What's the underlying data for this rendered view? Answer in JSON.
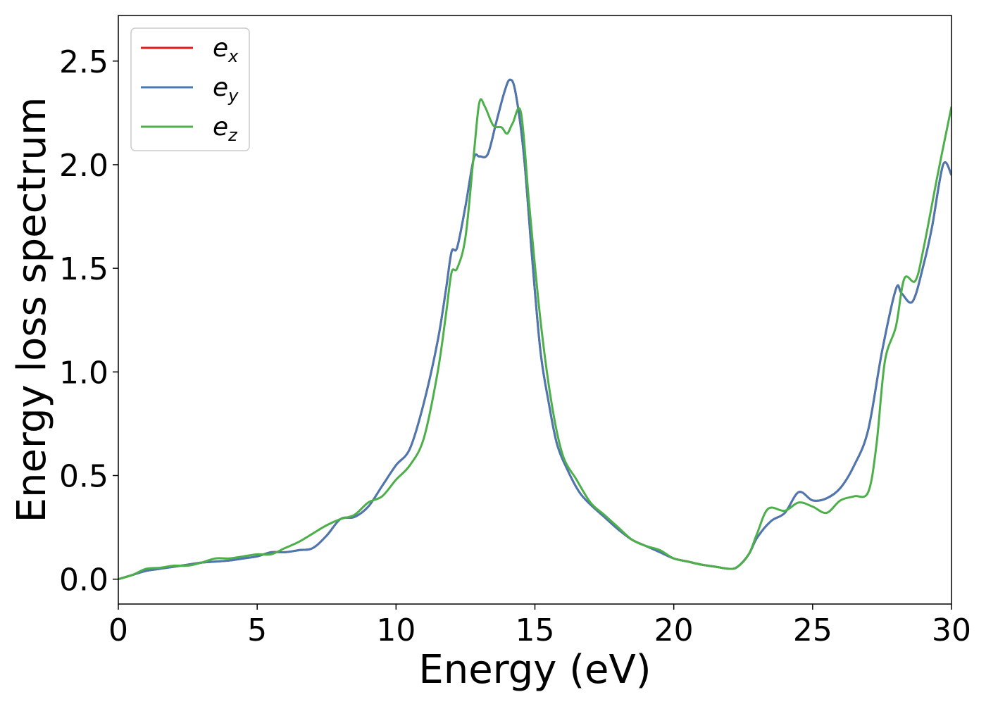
{
  "chart_data": {
    "type": "line",
    "xlabel": "Energy (eV)",
    "ylabel": "Energy loss spectrum",
    "xlim": [
      0,
      30
    ],
    "ylim": [
      -0.12,
      2.72
    ],
    "xticks": [
      "0",
      "5",
      "10",
      "15",
      "20",
      "25",
      "30"
    ],
    "yticks": [
      "0.0",
      "0.5",
      "1.0",
      "1.5",
      "2.0",
      "2.5"
    ],
    "grid": false,
    "legend_position": "top-left",
    "series": [
      {
        "name": "e_x",
        "label_base": "e",
        "label_sub": "x",
        "color": "#e41a1c",
        "x": [
          0,
          0.5,
          1,
          1.5,
          2,
          2.5,
          3,
          3.5,
          4,
          4.5,
          5,
          5.5,
          6,
          6.5,
          7,
          7.5,
          8,
          8.5,
          9,
          9.5,
          10,
          10.5,
          11,
          11.5,
          11.8,
          12,
          12.2,
          12.5,
          12.8,
          13,
          13.3,
          13.6,
          13.9,
          14.1,
          14.3,
          14.6,
          14.9,
          15.2,
          15.5,
          15.8,
          16.2,
          16.6,
          17,
          17.5,
          18,
          18.5,
          19,
          19.5,
          20,
          20.5,
          21,
          21.5,
          22,
          22.3,
          22.7,
          23,
          23.5,
          24,
          24.5,
          25,
          25.5,
          26,
          26.5,
          27,
          27.5,
          28,
          28.2,
          28.6,
          29,
          29.3,
          29.7,
          30
        ],
        "y": [
          0,
          0.02,
          0.04,
          0.05,
          0.06,
          0.07,
          0.08,
          0.085,
          0.09,
          0.1,
          0.11,
          0.13,
          0.13,
          0.14,
          0.15,
          0.21,
          0.29,
          0.3,
          0.35,
          0.45,
          0.55,
          0.63,
          0.85,
          1.15,
          1.4,
          1.58,
          1.6,
          1.8,
          2.03,
          2.04,
          2.05,
          2.2,
          2.35,
          2.41,
          2.35,
          2.05,
          1.55,
          1.1,
          0.85,
          0.65,
          0.52,
          0.42,
          0.36,
          0.3,
          0.24,
          0.19,
          0.16,
          0.13,
          0.1,
          0.085,
          0.07,
          0.06,
          0.05,
          0.06,
          0.12,
          0.2,
          0.28,
          0.32,
          0.42,
          0.38,
          0.39,
          0.44,
          0.55,
          0.72,
          1.1,
          1.4,
          1.38,
          1.34,
          1.52,
          1.7,
          2.0,
          1.95
        ]
      },
      {
        "name": "e_y",
        "label_base": "e",
        "label_sub": "y",
        "color": "#4a78b0",
        "x": [
          0,
          0.5,
          1,
          1.5,
          2,
          2.5,
          3,
          3.5,
          4,
          4.5,
          5,
          5.5,
          6,
          6.5,
          7,
          7.5,
          8,
          8.5,
          9,
          9.5,
          10,
          10.5,
          11,
          11.5,
          11.8,
          12,
          12.2,
          12.5,
          12.8,
          13,
          13.3,
          13.6,
          13.9,
          14.1,
          14.3,
          14.6,
          14.9,
          15.2,
          15.5,
          15.8,
          16.2,
          16.6,
          17,
          17.5,
          18,
          18.5,
          19,
          19.5,
          20,
          20.5,
          21,
          21.5,
          22,
          22.3,
          22.7,
          23,
          23.5,
          24,
          24.5,
          25,
          25.5,
          26,
          26.5,
          27,
          27.5,
          28,
          28.2,
          28.6,
          29,
          29.3,
          29.7,
          30
        ],
        "y": [
          0,
          0.02,
          0.04,
          0.05,
          0.06,
          0.07,
          0.08,
          0.085,
          0.09,
          0.1,
          0.11,
          0.13,
          0.13,
          0.14,
          0.15,
          0.21,
          0.29,
          0.3,
          0.35,
          0.45,
          0.55,
          0.63,
          0.85,
          1.15,
          1.4,
          1.58,
          1.6,
          1.8,
          2.03,
          2.04,
          2.05,
          2.2,
          2.35,
          2.41,
          2.35,
          2.05,
          1.55,
          1.1,
          0.85,
          0.65,
          0.52,
          0.42,
          0.36,
          0.3,
          0.24,
          0.19,
          0.16,
          0.13,
          0.1,
          0.085,
          0.07,
          0.06,
          0.05,
          0.06,
          0.12,
          0.2,
          0.28,
          0.32,
          0.42,
          0.38,
          0.39,
          0.44,
          0.55,
          0.72,
          1.1,
          1.4,
          1.38,
          1.34,
          1.52,
          1.7,
          2.0,
          1.95
        ]
      },
      {
        "name": "e_z",
        "label_base": "e",
        "label_sub": "z",
        "color": "#4daf4a",
        "x": [
          0,
          0.5,
          1,
          1.5,
          2,
          2.5,
          3,
          3.5,
          4,
          4.5,
          5,
          5.5,
          6,
          6.5,
          7,
          7.5,
          8,
          8.5,
          9,
          9.5,
          10,
          10.5,
          11,
          11.5,
          11.8,
          12,
          12.2,
          12.5,
          12.8,
          13,
          13.2,
          13.5,
          13.8,
          14,
          14.2,
          14.5,
          14.8,
          15.2,
          15.6,
          16,
          16.5,
          17,
          17.5,
          18,
          18.5,
          19,
          19.5,
          20,
          20.5,
          21,
          21.5,
          22,
          22.3,
          22.7,
          23,
          23.4,
          24,
          24.5,
          25,
          25.5,
          26,
          26.5,
          27,
          27.3,
          27.6,
          28,
          28.3,
          28.7,
          29,
          29.5,
          30
        ],
        "y": [
          0,
          0.02,
          0.05,
          0.055,
          0.065,
          0.065,
          0.08,
          0.1,
          0.1,
          0.11,
          0.12,
          0.12,
          0.15,
          0.18,
          0.22,
          0.26,
          0.29,
          0.31,
          0.37,
          0.4,
          0.48,
          0.55,
          0.68,
          1.0,
          1.28,
          1.48,
          1.5,
          1.65,
          2.05,
          2.3,
          2.28,
          2.19,
          2.18,
          2.15,
          2.2,
          2.25,
          1.8,
          1.25,
          0.85,
          0.6,
          0.48,
          0.37,
          0.31,
          0.25,
          0.19,
          0.16,
          0.14,
          0.1,
          0.085,
          0.07,
          0.06,
          0.05,
          0.06,
          0.12,
          0.22,
          0.34,
          0.33,
          0.37,
          0.35,
          0.32,
          0.38,
          0.4,
          0.42,
          0.65,
          1.05,
          1.22,
          1.45,
          1.44,
          1.6,
          1.95,
          2.28
        ]
      }
    ]
  }
}
